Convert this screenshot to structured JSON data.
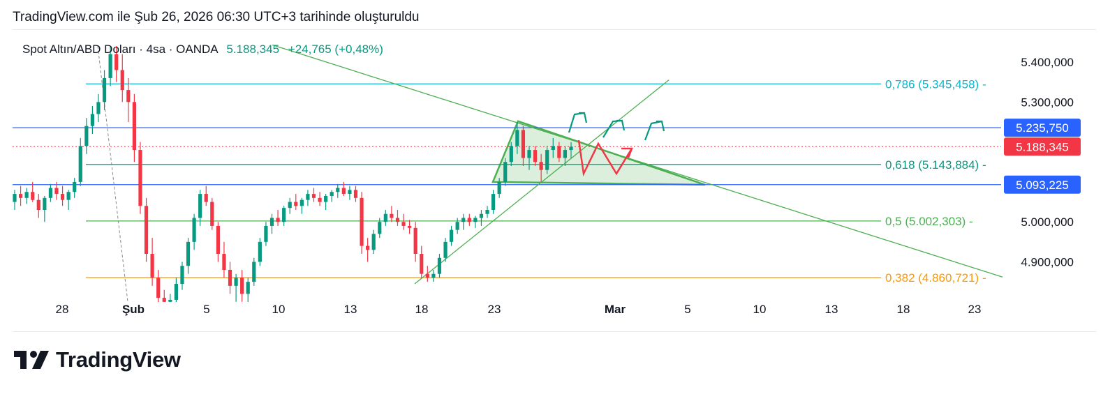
{
  "header": {
    "caption": "TradingView.com ile Şub 26, 2026 06:30 UTC+3 tarihinde oluşturuldu"
  },
  "legend": {
    "symbol": "Spot Altın/ABD Doları · 4sa · OANDA",
    "price": "5.188,345",
    "change": "+24,765 (+0,48%)"
  },
  "colors": {
    "up": "#089981",
    "down": "#f23645",
    "fib_786": "#00bcd4",
    "fib_618": "#089981",
    "fib_5": "#4caf50",
    "fib_382": "#ff9800",
    "blue_line": "#2962ff",
    "trend": "#4caf50"
  },
  "chart_data": {
    "type": "candlestick",
    "title": "Spot Altın/ABD Doları · 4sa · OANDA",
    "x_ticks": [
      "28",
      "Şub",
      "5",
      "10",
      "13",
      "18",
      "23",
      "Mar",
      "5",
      "10",
      "13",
      "18",
      "23"
    ],
    "y_ticks": [
      "5.400,000",
      "5.300,000",
      "5.000,000",
      "4.900,000"
    ],
    "y_range": [
      4790,
      5440
    ],
    "fib_levels": [
      {
        "label": "0,786 (5.345,458)",
        "value": 5345.458
      },
      {
        "label": "0,618 (5.143,884)",
        "value": 5143.884
      },
      {
        "label": "0,5 (5.002,303)",
        "value": 5002.303
      },
      {
        "label": "0,382 (4.860,721)",
        "value": 4860.721
      }
    ],
    "horizontal_levels": [
      {
        "label": "5.235,750",
        "value": 5235.75
      },
      {
        "label": "5.093,225",
        "value": 5093.225
      }
    ],
    "current_price": {
      "label": "5.188,345",
      "value": 5188.345
    },
    "candles": [
      [
        5050,
        5080,
        5030,
        5070
      ],
      [
        5070,
        5090,
        5040,
        5060
      ],
      [
        5060,
        5085,
        5045,
        5075
      ],
      [
        5075,
        5100,
        5050,
        5055
      ],
      [
        5055,
        5070,
        5010,
        5030
      ],
      [
        5030,
        5065,
        5000,
        5060
      ],
      [
        5060,
        5095,
        5050,
        5085
      ],
      [
        5085,
        5100,
        5055,
        5070
      ],
      [
        5070,
        5090,
        5040,
        5055
      ],
      [
        5055,
        5080,
        5030,
        5075
      ],
      [
        5075,
        5110,
        5060,
        5100
      ],
      [
        5100,
        5210,
        5090,
        5190
      ],
      [
        5190,
        5260,
        5170,
        5240
      ],
      [
        5240,
        5290,
        5220,
        5270
      ],
      [
        5270,
        5320,
        5250,
        5300
      ],
      [
        5300,
        5380,
        5280,
        5360
      ],
      [
        5360,
        5440,
        5340,
        5420
      ],
      [
        5420,
        5440,
        5350,
        5380
      ],
      [
        5380,
        5420,
        5300,
        5330
      ],
      [
        5330,
        5360,
        5250,
        5300
      ],
      [
        5300,
        5320,
        5150,
        5180
      ],
      [
        5180,
        5200,
        5020,
        5040
      ],
      [
        5040,
        5060,
        4900,
        4920
      ],
      [
        4920,
        4960,
        4840,
        4860
      ],
      [
        4860,
        4880,
        4790,
        4810
      ],
      [
        4810,
        4830,
        4790,
        4800
      ],
      [
        4800,
        4820,
        4790,
        4805
      ],
      [
        4805,
        4860,
        4795,
        4845
      ],
      [
        4845,
        4900,
        4830,
        4890
      ],
      [
        4890,
        4960,
        4870,
        4950
      ],
      [
        4950,
        5020,
        4930,
        5010
      ],
      [
        5010,
        5080,
        4990,
        5070
      ],
      [
        5070,
        5090,
        5040,
        5050
      ],
      [
        5050,
        5060,
        4980,
        4990
      ],
      [
        4990,
        5000,
        4900,
        4920
      ],
      [
        4920,
        4950,
        4860,
        4880
      ],
      [
        4880,
        4900,
        4820,
        4840
      ],
      [
        4840,
        4870,
        4800,
        4860
      ],
      [
        4860,
        4880,
        4800,
        4820
      ],
      [
        4820,
        4860,
        4790,
        4850
      ],
      [
        4850,
        4910,
        4840,
        4900
      ],
      [
        4900,
        4960,
        4890,
        4950
      ],
      [
        4950,
        5000,
        4940,
        4990
      ],
      [
        4990,
        5020,
        4970,
        5010
      ],
      [
        5010,
        5030,
        4990,
        5000
      ],
      [
        5000,
        5040,
        4990,
        5035
      ],
      [
        5035,
        5060,
        5020,
        5050
      ],
      [
        5050,
        5070,
        5030,
        5040
      ],
      [
        5040,
        5060,
        5020,
        5055
      ],
      [
        5055,
        5080,
        5040,
        5070
      ],
      [
        5070,
        5085,
        5050,
        5060
      ],
      [
        5060,
        5075,
        5040,
        5050
      ],
      [
        5050,
        5070,
        5030,
        5065
      ],
      [
        5065,
        5080,
        5050,
        5075
      ],
      [
        5075,
        5095,
        5060,
        5085
      ],
      [
        5085,
        5100,
        5065,
        5070
      ],
      [
        5070,
        5090,
        5055,
        5080
      ],
      [
        5080,
        5090,
        5050,
        5060
      ],
      [
        5060,
        5075,
        4920,
        4940
      ],
      [
        4940,
        4960,
        4900,
        4930
      ],
      [
        4930,
        4980,
        4920,
        4970
      ],
      [
        4970,
        5010,
        4960,
        5000
      ],
      [
        5000,
        5030,
        4990,
        5020
      ],
      [
        5020,
        5040,
        5000,
        5010
      ],
      [
        5010,
        5030,
        4990,
        5000
      ],
      [
        5000,
        5020,
        4980,
        4990
      ],
      [
        4990,
        5005,
        4970,
        4985
      ],
      [
        4985,
        5000,
        4900,
        4920
      ],
      [
        4920,
        4940,
        4860,
        4870
      ],
      [
        4870,
        4890,
        4850,
        4860
      ],
      [
        4860,
        4880,
        4850,
        4870
      ],
      [
        4870,
        4920,
        4860,
        4910
      ],
      [
        4910,
        4960,
        4900,
        4950
      ],
      [
        4950,
        4990,
        4940,
        4980
      ],
      [
        4980,
        5010,
        4970,
        5000
      ],
      [
        5000,
        5020,
        4980,
        5010
      ],
      [
        5010,
        5020,
        4990,
        5000
      ],
      [
        5000,
        5015,
        4985,
        5010
      ],
      [
        5010,
        5030,
        4990,
        5020
      ],
      [
        5020,
        5040,
        5010,
        5030
      ],
      [
        5030,
        5080,
        5020,
        5070
      ],
      [
        5070,
        5110,
        5060,
        5100
      ],
      [
        5100,
        5160,
        5090,
        5150
      ],
      [
        5150,
        5200,
        5140,
        5190
      ],
      [
        5190,
        5250,
        5170,
        5230
      ],
      [
        5230,
        5240,
        5140,
        5160
      ],
      [
        5160,
        5190,
        5130,
        5180
      ],
      [
        5180,
        5190,
        5140,
        5150
      ],
      [
        5150,
        5170,
        5100,
        5130
      ],
      [
        5130,
        5190,
        5120,
        5180
      ],
      [
        5180,
        5210,
        5160,
        5190
      ],
      [
        5190,
        5200,
        5150,
        5160
      ],
      [
        5160,
        5190,
        5140,
        5180
      ],
      [
        5180,
        5200,
        5160,
        5188
      ]
    ]
  },
  "logo": {
    "text": "TradingView"
  }
}
